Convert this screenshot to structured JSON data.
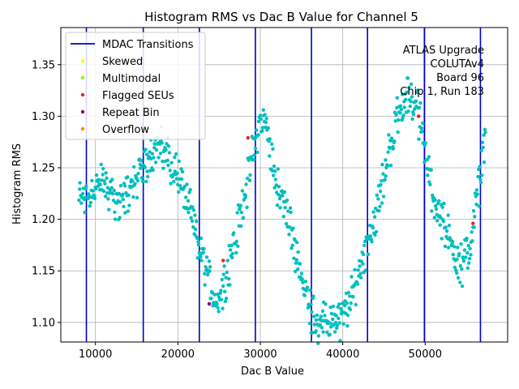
{
  "chart_data": {
    "type": "scatter",
    "title": "Histogram RMS vs Dac B Value for Channel 5",
    "xlabel": "Dac B Value",
    "ylabel": "Histogram RMS",
    "xlim": [
      5800,
      60000
    ],
    "ylim": [
      1.081,
      1.386
    ],
    "xticks": [
      10000,
      20000,
      30000,
      40000,
      50000
    ],
    "xtick_labels": [
      "10000",
      "20000",
      "30000",
      "40000",
      "50000"
    ],
    "yticks": [
      1.1,
      1.15,
      1.2,
      1.25,
      1.3,
      1.35
    ],
    "ytick_labels": [
      "1.10",
      "1.15",
      "1.20",
      "1.25",
      "1.30",
      "1.35"
    ],
    "grid": true,
    "legend_position": "top-left",
    "transitions": [
      8900,
      15800,
      22600,
      29400,
      36200,
      43000,
      49900,
      56700
    ],
    "legend": [
      {
        "label": "MDAC Transitions",
        "kind": "line",
        "color": "#0000cc"
      },
      {
        "label": "Skewed",
        "kind": "dot",
        "color": "#ffff00"
      },
      {
        "label": "Multimodal",
        "kind": "dot",
        "color": "#7fff00"
      },
      {
        "label": "Flagged SEUs",
        "kind": "dot",
        "color": "#e8202a"
      },
      {
        "label": "Repeat Bin",
        "kind": "dot",
        "color": "#800080"
      },
      {
        "label": "Overflow",
        "kind": "dot",
        "color": "#ff8c00"
      }
    ],
    "annotation_lines": [
      "ATLAS Upgrade",
      "COLUTAv4",
      "Board 96",
      "Chip 1, Run 183"
    ],
    "main_color": "#00bfbf",
    "main_series_envelope": {
      "x": [
        8000,
        9000,
        11000,
        13000,
        15800,
        17000,
        18500,
        20500,
        22000,
        23500,
        24500,
        25500,
        27000,
        28500,
        29500,
        30300,
        31200,
        32000,
        33000,
        34000,
        35000,
        36000,
        37000,
        38000,
        39000,
        40000,
        41000,
        42000,
        43000,
        44000,
        45000,
        46000,
        47000,
        48000,
        49000,
        49900,
        50500,
        51500,
        52500,
        53500,
        54500,
        55500,
        56500,
        57300
      ],
      "y": [
        1.22,
        1.225,
        1.235,
        1.215,
        1.25,
        1.27,
        1.265,
        1.235,
        1.19,
        1.15,
        1.12,
        1.135,
        1.18,
        1.24,
        1.28,
        1.3,
        1.27,
        1.235,
        1.21,
        1.18,
        1.145,
        1.115,
        1.1,
        1.1,
        1.1,
        1.105,
        1.12,
        1.15,
        1.18,
        1.205,
        1.24,
        1.28,
        1.31,
        1.32,
        1.31,
        1.27,
        1.24,
        1.21,
        1.19,
        1.17,
        1.155,
        1.175,
        1.23,
        1.29
      ],
      "spread": 0.025,
      "count": 720
    },
    "flagged_points": [
      {
        "category": "Flagged SEUs",
        "x": 25500,
        "y": 1.16
      },
      {
        "category": "Flagged SEUs",
        "x": 28500,
        "y": 1.279
      },
      {
        "category": "Flagged SEUs",
        "x": 49200,
        "y": 1.3
      },
      {
        "category": "Flagged SEUs",
        "x": 55800,
        "y": 1.196
      },
      {
        "category": "Repeat Bin",
        "x": 23800,
        "y": 1.118
      }
    ]
  }
}
